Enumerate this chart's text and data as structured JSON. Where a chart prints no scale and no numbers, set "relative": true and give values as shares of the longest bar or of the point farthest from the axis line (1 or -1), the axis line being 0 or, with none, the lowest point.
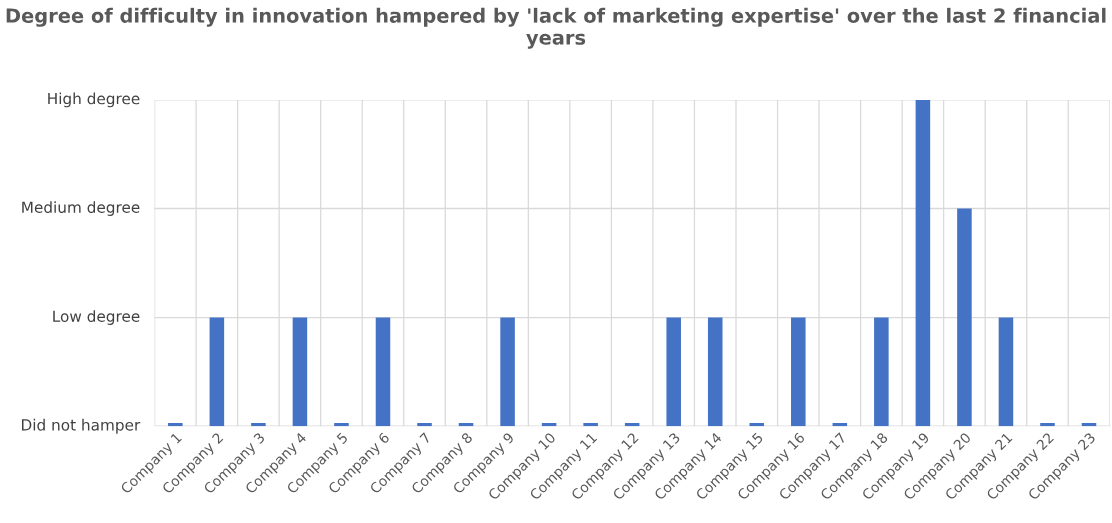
{
  "chart_data": {
    "type": "bar",
    "title": "Degree of difficulty in innovation hampered by 'lack of marketing expertise' over the last 2 financial years",
    "categories": [
      "Company 1",
      "Company 2",
      "Company 3",
      "Company 4",
      "Company 5",
      "Company 6",
      "Company 7",
      "Company 8",
      "Company 9",
      "Company 10",
      "Company 11",
      "Company 12",
      "Company 13",
      "Company 14",
      "Company 15",
      "Company 16",
      "Company 17",
      "Company 18",
      "Company 19",
      "Company 20",
      "Company 21",
      "Company 22",
      "Company 23"
    ],
    "values": [
      0.01,
      0.333,
      0.01,
      0.333,
      0.01,
      0.333,
      0.01,
      0.01,
      0.333,
      0.01,
      0.01,
      0.01,
      0.333,
      0.333,
      0.01,
      0.333,
      0.01,
      0.333,
      1,
      0.667,
      0.333,
      0.01,
      0.01
    ],
    "color": "#4472c4",
    "relative": true,
    "ref_lines": [
      {
        "axis": "y",
        "value": 0,
        "label": "Did not hamper",
        "color": "#d9d9d9"
      },
      {
        "axis": "y",
        "value": 0.333,
        "label": "Low degree",
        "color": "#d9d9d9"
      },
      {
        "axis": "y",
        "value": 0.667,
        "label": "Medium degree",
        "color": "#d9d9d9"
      },
      {
        "axis": "y",
        "value": 1,
        "label": "High degree",
        "color": "#d9d9d9"
      }
    ],
    "grid": true
  }
}
